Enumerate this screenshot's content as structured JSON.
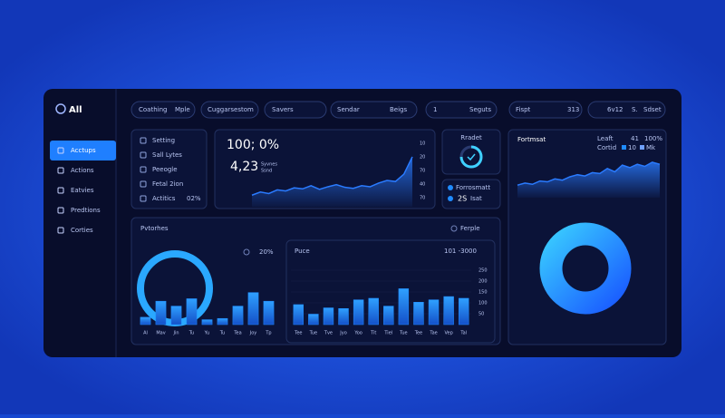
{
  "sidebar": {
    "logo": "All",
    "nav": [
      "Acctups",
      "Actions",
      "Eatvies",
      "Predtions",
      "Corties"
    ]
  },
  "toolbar": [
    [
      "Coathing",
      "Mple"
    ],
    [
      "Cuggarsestom"
    ],
    [
      "Savers"
    ],
    [
      "Sendar",
      "Beigs"
    ],
    [
      "1",
      "Seguts"
    ],
    [
      "Fispt",
      "313"
    ],
    [
      "6v12",
      "S.",
      "Sdset"
    ]
  ],
  "checklist": {
    "items": [
      "Setting",
      "Sall Lytes",
      "Peeogle",
      "Fetal 2ion",
      "Actitics"
    ],
    "badge": "02%"
  },
  "summary": {
    "headline": "100; 0%",
    "value": "4,23",
    "caption": [
      "Syvnes",
      "Ssnd"
    ],
    "axis_labels": [
      "10",
      "20",
      "70",
      "40",
      "70"
    ],
    "chart": {
      "type": "area",
      "values": [
        22,
        28,
        25,
        32,
        30,
        36,
        34,
        40,
        33,
        38,
        42,
        37,
        35,
        40,
        38,
        45,
        50,
        48,
        62,
        95
      ],
      "color": "#2a7bff"
    }
  },
  "radar": {
    "title": "Rradet"
  },
  "format": {
    "title": "Forrosmatt",
    "value": "2S",
    "unit": "Isat"
  },
  "right": {
    "title": "Fortmsat",
    "legend": [
      "Leaft",
      "41",
      "100%"
    ],
    "legend2": [
      "Cortid",
      "10",
      "Mk"
    ],
    "chart": {
      "type": "area",
      "values": [
        30,
        35,
        32,
        40,
        38,
        45,
        42,
        50,
        55,
        52,
        60,
        58,
        70,
        62,
        78,
        72,
        80,
        75,
        85,
        80
      ],
      "color": "#2a7bff"
    }
  },
  "overview": {
    "title": "Pvtorhes",
    "filter": "Ferple",
    "gauge_label": "20%",
    "chart": {
      "type": "bar",
      "categories": [
        "Al",
        "Mav",
        "Jin",
        "Tu",
        "Yu",
        "Tu",
        "Tea",
        "Joy",
        "Tp"
      ],
      "values": [
        12,
        38,
        30,
        42,
        8,
        10,
        30,
        52,
        38
      ],
      "color": "#1f8bff"
    }
  },
  "price": {
    "title": "Puce",
    "range": "101 -3000",
    "chart": {
      "type": "bar",
      "categories": [
        "Tee",
        "Tue",
        "Tve",
        "Jyo",
        "Yoo",
        "Tit",
        "Tiel",
        "Tue",
        "Tee",
        "Tae",
        "Vep",
        "Tal"
      ],
      "values": [
        92,
        48,
        77,
        74,
        114,
        121,
        85,
        165,
        103,
        114,
        129,
        121
      ],
      "color": "#1f8bff",
      "ylim": [
        0,
        250
      ],
      "yticks": [
        50,
        100,
        150,
        200,
        250
      ]
    }
  }
}
